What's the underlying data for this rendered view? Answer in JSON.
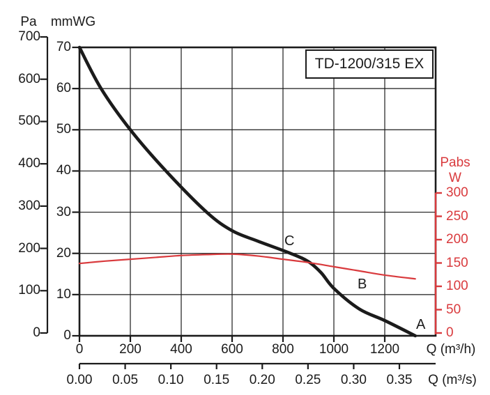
{
  "title_box": {
    "label": "TD-1200/315 EX"
  },
  "colors": {
    "curve_black": "#1b1b1b",
    "curve_red": "#d93a3d",
    "grid": "#1b1b1b",
    "background": "#ffffff"
  },
  "left_axis_pa": {
    "header": "Pa",
    "ticks": [
      700,
      600,
      500,
      400,
      300,
      200,
      100,
      0
    ]
  },
  "left_axis_mmwg": {
    "header": "mmWG",
    "ticks": [
      70,
      60,
      50,
      40,
      30,
      20,
      10,
      0
    ]
  },
  "right_axis_w": {
    "header_line1": "Pabs",
    "header_line2": "W",
    "ticks": [
      300,
      250,
      200,
      150,
      100,
      50,
      0
    ]
  },
  "bottom_axis_m3h": {
    "label": "Q (m³/h)",
    "ticks": [
      0,
      200,
      400,
      600,
      800,
      1000,
      1200
    ]
  },
  "bottom_axis_m3s": {
    "label": "Q (m³/s)",
    "ticks": [
      "0.00",
      "0.05",
      "0.10",
      "0.15",
      "0.20",
      "0.25",
      "0.30",
      "0.35"
    ]
  },
  "markers": {
    "a": "A",
    "b": "B",
    "c": "C"
  },
  "chart_data": {
    "type": "line",
    "title": "TD-1200/315 EX",
    "grid": true,
    "x_axis": {
      "label": "Q (m³/h)",
      "ticks": [
        0,
        200,
        400,
        600,
        800,
        1000,
        1200
      ],
      "range": [
        0,
        1400
      ]
    },
    "x_axis_secondary": {
      "label": "Q (m³/s)",
      "ticks": [
        0.0,
        0.05,
        0.1,
        0.15,
        0.2,
        0.25,
        0.3,
        0.35
      ],
      "range": [
        0,
        0.39
      ]
    },
    "y_axis_left_outer": {
      "label": "Pa",
      "ticks": [
        700,
        600,
        500,
        400,
        300,
        200,
        100,
        0
      ],
      "range": [
        0,
        700
      ]
    },
    "y_axis_left_inner": {
      "label": "mmWG",
      "ticks": [
        70,
        60,
        50,
        40,
        30,
        20,
        10,
        0
      ],
      "range": [
        0,
        70
      ]
    },
    "y_axis_right": {
      "label": "Pabs W",
      "ticks": [
        300,
        250,
        200,
        150,
        100,
        50,
        0
      ],
      "range": [
        0,
        300
      ],
      "color": "#d93a3d"
    },
    "series": [
      {
        "name": "pressure-curve",
        "unit": "mmWG",
        "color": "#1b1b1b",
        "stroke_width": 4.6,
        "points": [
          [
            0,
            70
          ],
          [
            85,
            60
          ],
          [
            200,
            50
          ],
          [
            340,
            40
          ],
          [
            500,
            30
          ],
          [
            600,
            25.5
          ],
          [
            700,
            23
          ],
          [
            830,
            20
          ],
          [
            900,
            18
          ],
          [
            950,
            15.3
          ],
          [
            1000,
            11.5
          ],
          [
            1100,
            6.5
          ],
          [
            1200,
            3.7
          ],
          [
            1320,
            0
          ]
        ]
      },
      {
        "name": "power-curve",
        "unit": "W",
        "color": "#d93a3d",
        "stroke_width": 2.2,
        "points": [
          [
            0,
            149
          ],
          [
            100,
            154
          ],
          [
            200,
            158
          ],
          [
            300,
            162
          ],
          [
            400,
            166
          ],
          [
            500,
            168
          ],
          [
            600,
            169
          ],
          [
            700,
            165
          ],
          [
            800,
            158
          ],
          [
            900,
            151
          ],
          [
            1000,
            142
          ],
          [
            1100,
            133
          ],
          [
            1200,
            124
          ],
          [
            1320,
            116
          ]
        ]
      }
    ],
    "point_labels": [
      {
        "text": "C",
        "q": 830
      },
      {
        "text": "B",
        "q": 1100
      },
      {
        "text": "A",
        "q": 1320
      }
    ]
  }
}
